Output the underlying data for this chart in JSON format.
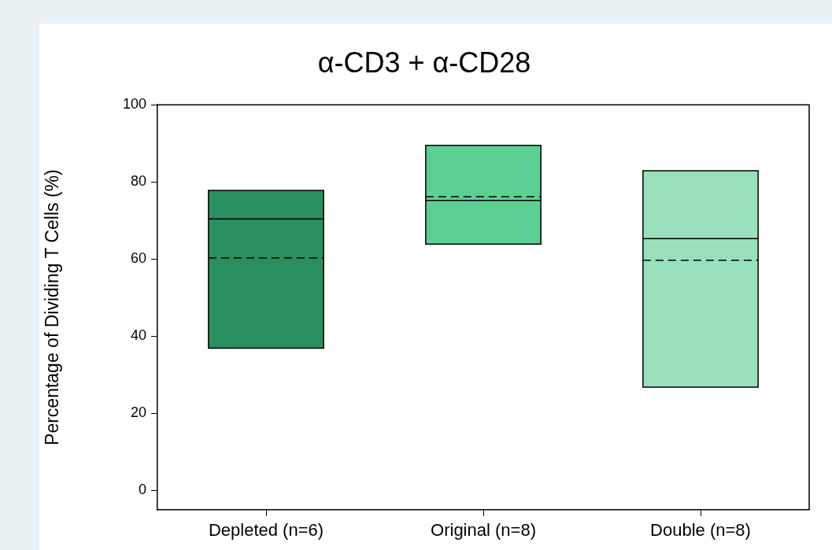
{
  "chart_data": {
    "type": "box",
    "title": "α-CD3 + α-CD28",
    "ylabel": "Percentage of Dividing T Cells (%)",
    "categories": [
      "Depleted (n=6)",
      "Original (n=8)",
      "Double (n=8)"
    ],
    "colors": [
      "#2a8f5e",
      "#5ccf94",
      "#98e0bb"
    ],
    "boxes": [
      {
        "low": 36.9,
        "q1": 36.9,
        "median": 70.4,
        "q3": 77.8,
        "high": 77.8,
        "mean": 60.3
      },
      {
        "low": 63.9,
        "q1": 63.9,
        "median": 75.2,
        "q3": 89.5,
        "high": 89.5,
        "mean": 76.2
      },
      {
        "low": 26.8,
        "q1": 26.8,
        "median": 65.3,
        "q3": 82.9,
        "high": 82.9,
        "mean": 59.7
      }
    ],
    "ylim": [
      -5,
      100
    ],
    "yticks": [
      0,
      20,
      40,
      60,
      80,
      100
    ]
  }
}
